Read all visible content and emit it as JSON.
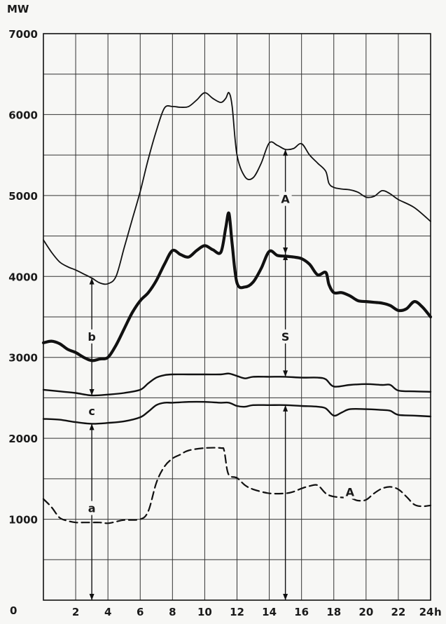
{
  "chart_data": {
    "type": "line",
    "xlabel": "h",
    "ylabel": "MW",
    "xlim": [
      0,
      24
    ],
    "ylim": [
      0,
      7000
    ],
    "x_ticks": [
      2,
      4,
      6,
      8,
      10,
      12,
      14,
      16,
      18,
      20,
      22,
      24
    ],
    "x_tick_labels": [
      "2",
      "4",
      "6",
      "8",
      "10",
      "12",
      "14",
      "16",
      "18",
      "20",
      "22",
      "24"
    ],
    "y_ticks": [
      0,
      1000,
      2000,
      3000,
      4000,
      5000,
      6000,
      7000
    ],
    "y_tick_labels": [
      "0",
      "1000",
      "2000",
      "3000",
      "4000",
      "5000",
      "6000",
      "7000"
    ],
    "grid": true,
    "series": [
      {
        "key": "top",
        "style": "thin",
        "points": [
          [
            0,
            4450
          ],
          [
            0.5,
            4300
          ],
          [
            1,
            4180
          ],
          [
            1.5,
            4120
          ],
          [
            2,
            4080
          ],
          [
            2.5,
            4030
          ],
          [
            3,
            3980
          ],
          [
            3.5,
            3920
          ],
          [
            4,
            3910
          ],
          [
            4.5,
            4000
          ],
          [
            5,
            4350
          ],
          [
            5.5,
            4700
          ],
          [
            6,
            5050
          ],
          [
            6.5,
            5450
          ],
          [
            7,
            5800
          ],
          [
            7.5,
            6080
          ],
          [
            8,
            6100
          ],
          [
            8.5,
            6090
          ],
          [
            9,
            6100
          ],
          [
            9.5,
            6180
          ],
          [
            10,
            6270
          ],
          [
            10.5,
            6200
          ],
          [
            11,
            6150
          ],
          [
            11.3,
            6200
          ],
          [
            11.5,
            6270
          ],
          [
            11.7,
            6100
          ],
          [
            12,
            5500
          ],
          [
            12.5,
            5230
          ],
          [
            13,
            5220
          ],
          [
            13.5,
            5400
          ],
          [
            14,
            5650
          ],
          [
            14.5,
            5620
          ],
          [
            15,
            5570
          ],
          [
            15.5,
            5580
          ],
          [
            16,
            5640
          ],
          [
            16.5,
            5500
          ],
          [
            17,
            5400
          ],
          [
            17.5,
            5300
          ],
          [
            17.7,
            5150
          ],
          [
            18,
            5100
          ],
          [
            18.5,
            5080
          ],
          [
            19,
            5070
          ],
          [
            19.5,
            5040
          ],
          [
            20,
            4980
          ],
          [
            20.5,
            4990
          ],
          [
            21,
            5060
          ],
          [
            21.5,
            5020
          ],
          [
            22,
            4950
          ],
          [
            23,
            4850
          ],
          [
            24,
            4680
          ]
        ]
      },
      {
        "key": "thick",
        "style": "thick",
        "points": [
          [
            0,
            3180
          ],
          [
            0.5,
            3200
          ],
          [
            1,
            3170
          ],
          [
            1.5,
            3100
          ],
          [
            2,
            3060
          ],
          [
            2.5,
            3000
          ],
          [
            3,
            2960
          ],
          [
            3.5,
            2980
          ],
          [
            4,
            3000
          ],
          [
            4.5,
            3150
          ],
          [
            5,
            3350
          ],
          [
            5.5,
            3550
          ],
          [
            6,
            3700
          ],
          [
            6.5,
            3800
          ],
          [
            7,
            3950
          ],
          [
            7.5,
            4150
          ],
          [
            8,
            4320
          ],
          [
            8.5,
            4270
          ],
          [
            9,
            4240
          ],
          [
            9.5,
            4320
          ],
          [
            10,
            4380
          ],
          [
            10.5,
            4330
          ],
          [
            11,
            4300
          ],
          [
            11.3,
            4600
          ],
          [
            11.5,
            4780
          ],
          [
            11.7,
            4400
          ],
          [
            12,
            3920
          ],
          [
            12.5,
            3870
          ],
          [
            13,
            3930
          ],
          [
            13.5,
            4100
          ],
          [
            14,
            4310
          ],
          [
            14.5,
            4260
          ],
          [
            15,
            4250
          ],
          [
            15.5,
            4240
          ],
          [
            16,
            4220
          ],
          [
            16.5,
            4150
          ],
          [
            17,
            4020
          ],
          [
            17.5,
            4050
          ],
          [
            17.7,
            3900
          ],
          [
            18,
            3800
          ],
          [
            18.5,
            3800
          ],
          [
            19,
            3760
          ],
          [
            19.5,
            3700
          ],
          [
            20,
            3690
          ],
          [
            20.5,
            3680
          ],
          [
            21,
            3670
          ],
          [
            21.5,
            3640
          ],
          [
            22,
            3580
          ],
          [
            22.5,
            3600
          ],
          [
            23,
            3690
          ],
          [
            23.5,
            3620
          ],
          [
            24,
            3500
          ]
        ]
      },
      {
        "key": "upper-band",
        "style": "medium",
        "points": [
          [
            0,
            2600
          ],
          [
            1,
            2580
          ],
          [
            2,
            2560
          ],
          [
            3,
            2530
          ],
          [
            4,
            2540
          ],
          [
            5,
            2560
          ],
          [
            6,
            2600
          ],
          [
            6.5,
            2680
          ],
          [
            7,
            2750
          ],
          [
            7.5,
            2780
          ],
          [
            8,
            2790
          ],
          [
            9,
            2790
          ],
          [
            10,
            2790
          ],
          [
            11,
            2790
          ],
          [
            11.5,
            2800
          ],
          [
            12,
            2770
          ],
          [
            12.5,
            2740
          ],
          [
            13,
            2760
          ],
          [
            14,
            2760
          ],
          [
            15,
            2760
          ],
          [
            16,
            2750
          ],
          [
            17,
            2750
          ],
          [
            17.5,
            2730
          ],
          [
            18,
            2640
          ],
          [
            19,
            2660
          ],
          [
            20,
            2670
          ],
          [
            21,
            2660
          ],
          [
            21.5,
            2660
          ],
          [
            22,
            2590
          ],
          [
            23,
            2580
          ],
          [
            24,
            2575
          ]
        ]
      },
      {
        "key": "lower-band",
        "style": "medium",
        "points": [
          [
            0,
            2240
          ],
          [
            1,
            2230
          ],
          [
            2,
            2200
          ],
          [
            3,
            2180
          ],
          [
            4,
            2190
          ],
          [
            5,
            2210
          ],
          [
            6,
            2260
          ],
          [
            6.5,
            2330
          ],
          [
            7,
            2410
          ],
          [
            7.5,
            2440
          ],
          [
            8,
            2440
          ],
          [
            9,
            2450
          ],
          [
            10,
            2450
          ],
          [
            11,
            2440
          ],
          [
            11.5,
            2440
          ],
          [
            12,
            2400
          ],
          [
            12.5,
            2390
          ],
          [
            13,
            2410
          ],
          [
            14,
            2410
          ],
          [
            15,
            2410
          ],
          [
            16,
            2400
          ],
          [
            17,
            2390
          ],
          [
            17.5,
            2370
          ],
          [
            18,
            2280
          ],
          [
            18.5,
            2320
          ],
          [
            19,
            2360
          ],
          [
            20,
            2360
          ],
          [
            21,
            2350
          ],
          [
            21.5,
            2340
          ],
          [
            22,
            2290
          ],
          [
            23,
            2280
          ],
          [
            24,
            2270
          ]
        ]
      },
      {
        "key": "dashed",
        "style": "dashed",
        "points": [
          [
            0,
            1250
          ],
          [
            0.5,
            1150
          ],
          [
            1,
            1020
          ],
          [
            1.5,
            980
          ],
          [
            2,
            960
          ],
          [
            2.5,
            960
          ],
          [
            3,
            960
          ],
          [
            3.5,
            960
          ],
          [
            4,
            950
          ],
          [
            4.5,
            970
          ],
          [
            5,
            990
          ],
          [
            6,
            1000
          ],
          [
            6.5,
            1100
          ],
          [
            7,
            1450
          ],
          [
            7.5,
            1650
          ],
          [
            8,
            1750
          ],
          [
            8.5,
            1800
          ],
          [
            9,
            1850
          ],
          [
            10,
            1880
          ],
          [
            11,
            1880
          ],
          [
            11.2,
            1850
          ],
          [
            11.4,
            1600
          ],
          [
            11.6,
            1530
          ],
          [
            12,
            1510
          ],
          [
            12.5,
            1420
          ],
          [
            13,
            1370
          ],
          [
            14,
            1320
          ],
          [
            15,
            1320
          ],
          [
            15.5,
            1340
          ],
          [
            16,
            1380
          ],
          [
            16.5,
            1410
          ],
          [
            17,
            1420
          ],
          [
            17.5,
            1320
          ],
          [
            18,
            1280
          ],
          [
            19,
            1260
          ],
          [
            19.5,
            1230
          ],
          [
            20,
            1240
          ],
          [
            20.5,
            1320
          ],
          [
            21,
            1380
          ],
          [
            21.5,
            1400
          ],
          [
            22,
            1370
          ],
          [
            22.5,
            1280
          ],
          [
            23,
            1180
          ],
          [
            23.5,
            1160
          ],
          [
            24,
            1170
          ]
        ]
      }
    ],
    "annotations": [
      {
        "text": "A",
        "x": 15,
        "y": 4950
      },
      {
        "text": "S",
        "x": 15,
        "y": 3250
      },
      {
        "text": "b",
        "x": 3,
        "y": 3250
      },
      {
        "text": "c",
        "x": 3,
        "y": 2330
      },
      {
        "text": "a",
        "x": 3,
        "y": 1130
      },
      {
        "text": "A",
        "x": 19,
        "y": 1330
      }
    ],
    "arrows": [
      {
        "x": 15,
        "from": 5570,
        "to": 4280,
        "double": true
      },
      {
        "x": 15,
        "from": 4280,
        "to": 2760,
        "double": true
      },
      {
        "x": 15,
        "from": 2410,
        "to": 0,
        "double": true
      },
      {
        "x": 3,
        "from": 3980,
        "to": 2530,
        "double": true
      },
      {
        "x": 3,
        "from": 2180,
        "to": 0,
        "double": true
      }
    ]
  }
}
